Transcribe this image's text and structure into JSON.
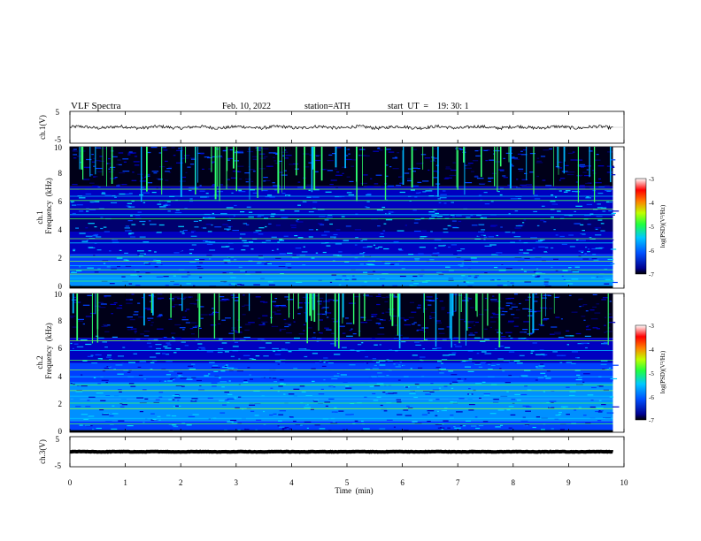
{
  "header": {
    "title": "VLF  Spectra",
    "date": "Feb. 10, 2022",
    "station": "station=ATH",
    "start": "start  UT  =    19: 30: 1"
  },
  "chart_data": [
    {
      "type": "line",
      "name": "ch1-waveform",
      "ylabel": "ch.1(V)",
      "ylim": [
        -5,
        5
      ],
      "yticks": [
        "5",
        "-5"
      ],
      "xlim": [
        0,
        10
      ],
      "data_end_min": 9.8,
      "level_V": 0,
      "fluctuation_V": 1
    },
    {
      "type": "heatmap",
      "name": "ch1-spectrogram",
      "ylabel_line1": "ch.1",
      "ylabel_line2": "Frequency  (kHz)",
      "ylim": [
        0,
        10
      ],
      "yticks": [
        "0",
        "2",
        "4",
        "6",
        "8",
        "10"
      ],
      "xlim": [
        0,
        10
      ],
      "data_end_min": 9.8,
      "colorbar": {
        "label": "log(PSD)(V²/Hz)",
        "range": [
          -7,
          -3
        ],
        "ticks": [
          "-3",
          "-4",
          "-5",
          "-6",
          "-7"
        ]
      },
      "lines_khz": [
        0.5,
        0.7,
        1.0,
        1.3,
        1.6,
        1.9,
        2.2,
        3.2,
        3.5,
        4.9,
        5.2,
        5.6,
        6.2,
        6.5,
        7.0
      ]
    },
    {
      "type": "heatmap",
      "name": "ch2-spectrogram",
      "ylabel_line1": "ch.2",
      "ylabel_line2": "Frequency  (kHz)",
      "ylim": [
        0,
        10
      ],
      "yticks": [
        "0",
        "2",
        "4",
        "6",
        "8",
        "10"
      ],
      "xlim": [
        0,
        10
      ],
      "data_end_min": 9.8,
      "colorbar": {
        "label": "log(PSD)(V²/Hz)",
        "range": [
          -7,
          -3
        ],
        "ticks": [
          "-3",
          "-4",
          "-5",
          "-6",
          "-7"
        ]
      },
      "lines_khz": [
        0.6,
        1.0,
        1.7,
        2.1,
        2.6,
        3.0,
        3.4,
        4.0,
        4.5,
        5.2,
        5.9,
        6.6
      ]
    },
    {
      "type": "line",
      "name": "ch3-waveform",
      "ylabel": "ch.3(V)",
      "ylim": [
        -5,
        5
      ],
      "yticks": [
        "5",
        "-5"
      ],
      "xlim": [
        0,
        10
      ],
      "data_end_min": 9.8,
      "level_V": 0,
      "fluctuation_V": 0.15
    }
  ],
  "x_axis": {
    "label": "Time  (min)",
    "ticks": [
      "0",
      "1",
      "2",
      "3",
      "4",
      "5",
      "6",
      "7",
      "8",
      "9",
      "10"
    ]
  }
}
